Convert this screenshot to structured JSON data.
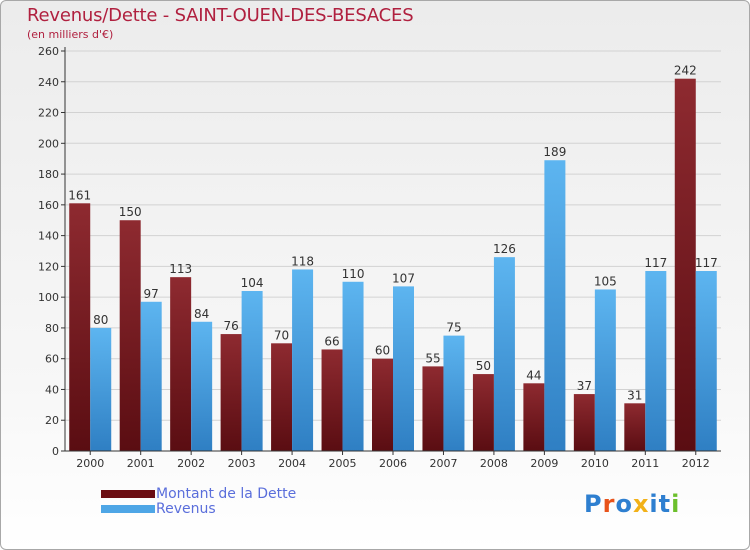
{
  "title": "Revenus/Dette - SAINT-OUEN-DES-BESACES",
  "subtitle": "(en milliers d'€)",
  "chart_data": {
    "type": "bar",
    "categories": [
      "2000",
      "2001",
      "2002",
      "2003",
      "2004",
      "2005",
      "2006",
      "2007",
      "2008",
      "2009",
      "2010",
      "2011",
      "2012"
    ],
    "series": [
      {
        "name": "Montant de la Dette",
        "values": [
          161,
          150,
          113,
          76,
          70,
          66,
          60,
          55,
          50,
          44,
          37,
          31,
          242
        ],
        "color": "#7a1f25"
      },
      {
        "name": "Revenus",
        "values": [
          80,
          97,
          84,
          104,
          118,
          110,
          107,
          75,
          126,
          189,
          105,
          117,
          117
        ],
        "color": "#4ea6e6"
      }
    ],
    "ylim": [
      0,
      260
    ],
    "yticks": [
      0,
      20,
      40,
      60,
      80,
      100,
      120,
      140,
      160,
      180,
      200,
      220,
      240,
      260
    ],
    "grid": true,
    "legend": "bottom-left",
    "xlabel": "",
    "ylabel": ""
  },
  "logo": {
    "text": "Proxiti",
    "colors": [
      "#2e7fd0",
      "#e8531a",
      "#2e7fd0",
      "#f2b118",
      "#2e7fd0",
      "#2e7fd0",
      "#6cbf2c"
    ]
  }
}
